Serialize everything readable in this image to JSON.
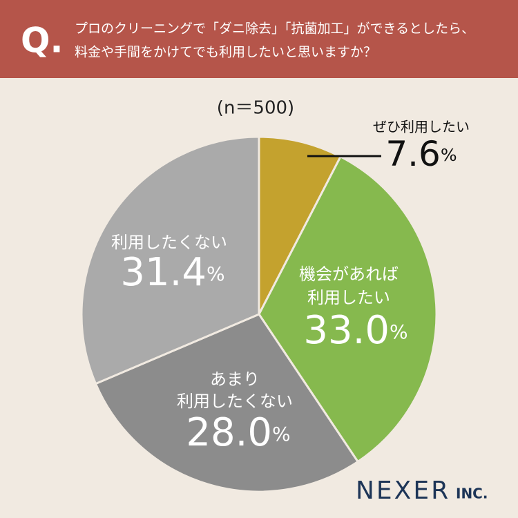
{
  "chart_data": {
    "type": "pie",
    "title_prefix": "Q.",
    "title": [
      "プロのクリーニングで「ダニ除去」「抗菌加工」ができるとしたら、",
      "料金や手間をかけてでも利用したいと思いますか？"
    ],
    "subtitle": "(n＝500)",
    "categories": [
      [
        "ぜひ利用したい"
      ],
      [
        "機会があれば",
        "利用したい"
      ],
      [
        "あまり",
        "利用したくない"
      ],
      [
        "利用したくない"
      ]
    ],
    "values": [
      7.6,
      33.0,
      28.0,
      31.4
    ],
    "value_labels": [
      "7.6",
      "33.0",
      "28.0",
      "31.4"
    ],
    "unit": "%",
    "colors": [
      "#c4a22e",
      "#86b94e",
      "#8c8c8c",
      "#aaaaaa"
    ],
    "logo": [
      "NEXER",
      "INC."
    ]
  }
}
